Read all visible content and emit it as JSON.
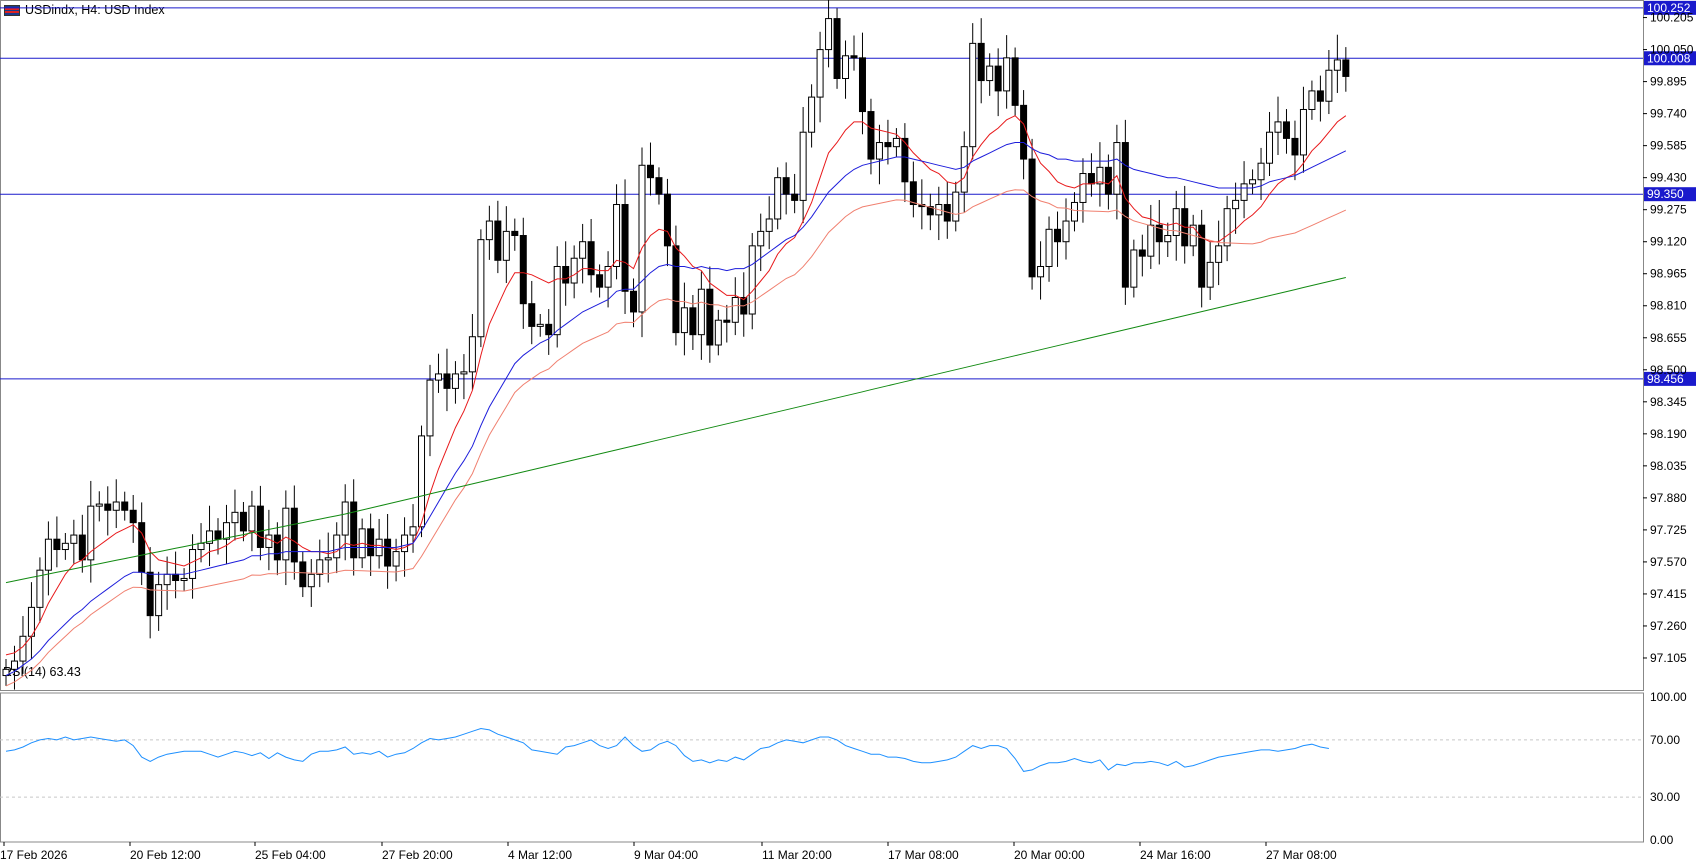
{
  "header": {
    "symbol_title": "USDindx, H4:  USD Index",
    "flag_icon": "us-flag-icon"
  },
  "colors": {
    "background": "#ffffff",
    "candle": "#000000",
    "ma_fast": "#e8191b",
    "ma_mid": "#1d1ddb",
    "ma_slow": "#f08070",
    "ma_long": "#128a12",
    "hline": "#1a1acc",
    "rsi": "#1e90ff",
    "grid": "#c8c8c8"
  },
  "chart_data": {
    "type": "candlestick",
    "title": "USDindx, H4:  USD Index",
    "ylim": [
      96.95,
      100.29
    ],
    "y_ticks": [
      "100.205",
      "100.050",
      "99.895",
      "99.740",
      "99.585",
      "99.430",
      "99.275",
      "99.120",
      "98.965",
      "98.810",
      "98.655",
      "98.500",
      "98.345",
      "98.190",
      "98.035",
      "97.880",
      "97.725",
      "97.570",
      "97.415",
      "97.260",
      "97.105"
    ],
    "x_ticks": [
      "17 Feb 2026",
      "20 Feb 12:00",
      "25 Feb 04:00",
      "27 Feb 20:00",
      "4 Mar 12:00",
      "9 Mar 04:00",
      "11 Mar 20:00",
      "17 Mar 08:00",
      "20 Mar 00:00",
      "24 Mar 16:00",
      "27 Mar 08:00"
    ],
    "horizontal_lines": [
      {
        "value": 100.252,
        "label": "100.252"
      },
      {
        "value": 100.008,
        "label": "100.008"
      },
      {
        "value": 99.35,
        "label": "99.350"
      },
      {
        "value": 98.456,
        "label": "98.456"
      }
    ],
    "closes": [
      97.05,
      97.09,
      97.21,
      97.35,
      97.53,
      97.68,
      97.63,
      97.66,
      97.7,
      97.58,
      97.84,
      97.85,
      97.82,
      97.86,
      97.82,
      97.76,
      97.52,
      97.31,
      97.46,
      97.51,
      97.48,
      97.49,
      97.63,
      97.66,
      97.72,
      97.68,
      97.76,
      97.81,
      97.72,
      97.84,
      97.64,
      97.7,
      97.58,
      97.83,
      97.57,
      97.45,
      97.51,
      97.58,
      97.59,
      97.7,
      97.86,
      97.59,
      97.73,
      97.6,
      97.68,
      97.55,
      97.62,
      97.7,
      97.74,
      98.18,
      98.45,
      98.48,
      98.41,
      98.48,
      98.49,
      98.66,
      99.13,
      99.22,
      99.03,
      99.17,
      99.15,
      98.82,
      98.71,
      98.72,
      98.67,
      99.0,
      98.92,
      99.04,
      99.12,
      98.96,
      98.9,
      99.0,
      99.3,
      98.88,
      98.78,
      99.49,
      99.43,
      99.35,
      99.1,
      98.68,
      98.8,
      98.67,
      98.89,
      98.62,
      98.74,
      98.73,
      98.85,
      98.77,
      99.1,
      99.17,
      99.23,
      99.43,
      99.35,
      99.32,
      99.65,
      99.82,
      100.05,
      100.2,
      99.91,
      100.02,
      100.01,
      99.75,
      99.52,
      99.6,
      99.58,
      99.62,
      99.41,
      99.3,
      99.29,
      99.25,
      99.3,
      99.22,
      99.36,
      99.58,
      100.08,
      99.9,
      99.97,
      99.85,
      100.01,
      99.78,
      99.52,
      98.95,
      99.0,
      99.18,
      99.12,
      99.22,
      99.31,
      99.45,
      99.4,
      99.48,
      99.35,
      99.6,
      98.9,
      99.08,
      99.05,
      99.2,
      99.12,
      99.15,
      99.28,
      99.1,
      99.2,
      98.9,
      99.02,
      99.1,
      99.28,
      99.32,
      99.4,
      99.42,
      99.5,
      99.65,
      99.7,
      99.62,
      99.54,
      99.76,
      99.85,
      99.8,
      99.95,
      100.0,
      99.92
    ]
  },
  "rsi": {
    "label": "RSI(14) 63.43",
    "levels": [
      "100.00",
      "70.00",
      "30.00",
      "0.00"
    ],
    "values": [
      62,
      63,
      65,
      68,
      70,
      71,
      70,
      72,
      70,
      71,
      72,
      71,
      70,
      69,
      70,
      66,
      58,
      55,
      58,
      60,
      61,
      62,
      62,
      62,
      60,
      58,
      60,
      62,
      61,
      59,
      61,
      57,
      61,
      58,
      56,
      55,
      60,
      62,
      62,
      63,
      65,
      60,
      61,
      60,
      62,
      58,
      60,
      61,
      64,
      68,
      71,
      70,
      71,
      72,
      74,
      76,
      78,
      77,
      74,
      72,
      70,
      68,
      63,
      62,
      61,
      60,
      65,
      66,
      68,
      70,
      66,
      64,
      66,
      72,
      66,
      62,
      63,
      67,
      69,
      66,
      59,
      55,
      56,
      54,
      56,
      55,
      58,
      56,
      60,
      64,
      65,
      68,
      70,
      69,
      68,
      70,
      72,
      72,
      70,
      66,
      64,
      62,
      60,
      60,
      58,
      58,
      57,
      55,
      54,
      54,
      55,
      56,
      58,
      62,
      66,
      64,
      66,
      66,
      64,
      57,
      48,
      49,
      52,
      54,
      54,
      55,
      57,
      55,
      54,
      56,
      49,
      53,
      52,
      54,
      54,
      55,
      54,
      52,
      55,
      51,
      52,
      54,
      56,
      58,
      59,
      60,
      61,
      62,
      63,
      63,
      62,
      63,
      64,
      66,
      67,
      65,
      64
    ]
  },
  "ma_fast": [
    97.12,
    97.13,
    97.16,
    97.21,
    97.28,
    97.37,
    97.44,
    97.51,
    97.56,
    97.58,
    97.62,
    97.65,
    97.68,
    97.71,
    97.73,
    97.75,
    97.71,
    97.62,
    97.58,
    97.57,
    97.56,
    97.55,
    97.57,
    97.59,
    97.62,
    97.63,
    97.65,
    97.68,
    97.69,
    97.72,
    97.69,
    97.68,
    97.66,
    97.69,
    97.67,
    97.64,
    97.62,
    97.62,
    97.61,
    97.62,
    97.66,
    97.65,
    97.66,
    97.65,
    97.65,
    97.64,
    97.63,
    97.64,
    97.66,
    97.76,
    97.9,
    98.02,
    98.12,
    98.22,
    98.3,
    98.4,
    98.57,
    98.72,
    98.81,
    98.9,
    98.97,
    98.97,
    98.96,
    98.94,
    98.92,
    98.94,
    98.94,
    98.96,
    98.99,
    98.99,
    98.98,
    98.98,
    99.03,
    99.02,
    98.99,
    99.09,
    99.15,
    99.18,
    99.17,
    99.09,
    99.05,
    99.0,
    98.98,
    98.92,
    98.89,
    98.86,
    98.86,
    98.84,
    98.88,
    98.93,
    98.98,
    99.06,
    99.11,
    99.14,
    99.22,
    99.31,
    99.43,
    99.55,
    99.6,
    99.66,
    99.7,
    99.7,
    99.67,
    99.66,
    99.65,
    99.64,
    99.6,
    99.55,
    99.51,
    99.47,
    99.45,
    99.41,
    99.4,
    99.43,
    99.53,
    99.59,
    99.64,
    99.67,
    99.71,
    99.73,
    99.69,
    99.58,
    99.5,
    99.46,
    99.41,
    99.39,
    99.38,
    99.4,
    99.4,
    99.41,
    99.4,
    99.44,
    99.33,
    99.28,
    99.24,
    99.23,
    99.21,
    99.2,
    99.21,
    99.19,
    99.19,
    99.14,
    99.12,
    99.12,
    99.15,
    99.18,
    99.22,
    99.25,
    99.29,
    99.35,
    99.4,
    99.43,
    99.45,
    99.5,
    99.56,
    99.6,
    99.65,
    99.7,
    99.73
  ],
  "ma_mid": [
    97.02,
    97.04,
    97.07,
    97.1,
    97.14,
    97.19,
    97.23,
    97.27,
    97.31,
    97.34,
    97.38,
    97.41,
    97.44,
    97.47,
    97.5,
    97.52,
    97.52,
    97.51,
    97.51,
    97.51,
    97.51,
    97.51,
    97.52,
    97.53,
    97.54,
    97.55,
    97.56,
    97.57,
    97.58,
    97.6,
    97.6,
    97.61,
    97.61,
    97.62,
    97.62,
    97.62,
    97.62,
    97.62,
    97.62,
    97.63,
    97.64,
    97.64,
    97.64,
    97.64,
    97.64,
    97.64,
    97.64,
    97.65,
    97.66,
    97.72,
    97.79,
    97.86,
    97.93,
    98.0,
    98.06,
    98.13,
    98.23,
    98.32,
    98.39,
    98.46,
    98.53,
    98.57,
    98.6,
    98.63,
    98.65,
    98.69,
    98.72,
    98.75,
    98.78,
    98.8,
    98.82,
    98.84,
    98.88,
    98.89,
    98.89,
    98.93,
    98.97,
    99.0,
    99.01,
    99.0,
    99.0,
    98.99,
    99.0,
    98.99,
    98.99,
    98.98,
    98.99,
    98.99,
    99.01,
    99.04,
    99.07,
    99.1,
    99.13,
    99.15,
    99.19,
    99.24,
    99.3,
    99.36,
    99.4,
    99.44,
    99.47,
    99.49,
    99.5,
    99.51,
    99.52,
    99.53,
    99.53,
    99.52,
    99.51,
    99.5,
    99.49,
    99.48,
    99.47,
    99.48,
    99.51,
    99.53,
    99.55,
    99.57,
    99.59,
    99.6,
    99.6,
    99.57,
    99.55,
    99.54,
    99.52,
    99.52,
    99.51,
    99.51,
    99.51,
    99.51,
    99.51,
    99.52,
    99.49,
    99.47,
    99.46,
    99.45,
    99.44,
    99.43,
    99.43,
    99.42,
    99.41,
    99.4,
    99.39,
    99.38,
    99.38,
    99.38,
    99.38,
    99.38,
    99.39,
    99.41,
    99.42,
    99.43,
    99.44,
    99.46,
    99.48,
    99.5,
    99.52,
    99.54,
    99.56
  ]
}
